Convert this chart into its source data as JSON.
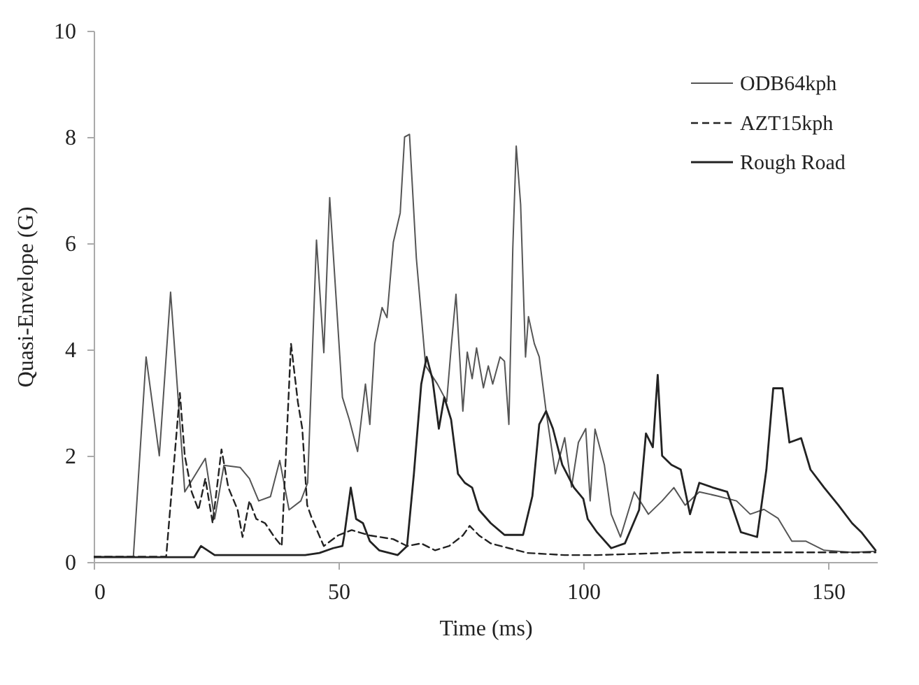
{
  "chart_data": {
    "type": "line",
    "xlabel": "Time (ms)",
    "ylabel": "Quasi-Envelope (G)",
    "xlim": [
      0,
      160
    ],
    "xticks": [
      0,
      50,
      100,
      150
    ],
    "ylim": [
      0,
      10
    ],
    "yticks": [
      0,
      2,
      4,
      6,
      8,
      10
    ],
    "grid": false,
    "legend": "top right",
    "marker": "none",
    "series": [
      {
        "name": "ODB64kph",
        "color": "#555555",
        "line_style": "solid",
        "x": [
          0,
          8.1,
          10.7,
          13.4,
          15.7,
          18.6,
          22.8,
          24.7,
          26.6,
          29.9,
          31.8,
          33.7,
          36.1,
          38.0,
          39.9,
          42.3,
          43.7,
          45.5,
          47.0,
          48.2,
          50.8,
          52.2,
          53.9,
          55.5,
          56.4,
          57.4,
          58.9,
          59.9,
          61.2,
          62.6,
          63.5,
          64.5,
          65.9,
          67.8,
          70.2,
          72.1,
          73.0,
          74.0,
          75.4,
          76.3,
          77.3,
          78.2,
          79.6,
          80.6,
          81.5,
          83.0,
          83.9,
          84.8,
          85.6,
          86.3,
          87.2,
          88.2,
          88.8,
          90.0,
          91.0,
          92.4,
          94.3,
          96.2,
          97.6,
          99.0,
          100.5,
          101.4,
          102.4,
          104.3,
          105.7,
          107.6,
          110.4,
          113.3,
          116.1,
          118.5,
          120.8,
          123.7,
          127.5,
          131.3,
          134.1,
          136.9,
          139.8,
          142.6,
          145.5,
          149.2,
          154.9,
          159.7
        ],
        "values": [
          0.1,
          0.1,
          3.86,
          2.0,
          5.08,
          1.32,
          1.95,
          0.81,
          1.82,
          1.78,
          1.57,
          1.15,
          1.23,
          1.91,
          0.98,
          1.15,
          1.49,
          6.06,
          3.94,
          6.86,
          3.1,
          2.68,
          2.08,
          3.35,
          2.59,
          4.11,
          4.79,
          4.6,
          6.02,
          6.57,
          8.0,
          8.05,
          5.72,
          3.69,
          3.35,
          3.02,
          4.03,
          5.04,
          2.84,
          3.95,
          3.45,
          4.03,
          3.28,
          3.69,
          3.35,
          3.86,
          3.78,
          2.59,
          5.9,
          7.83,
          6.73,
          3.86,
          4.62,
          4.11,
          3.86,
          2.84,
          1.66,
          2.34,
          1.41,
          2.25,
          2.51,
          1.15,
          2.5,
          1.83,
          0.9,
          0.47,
          1.32,
          0.9,
          1.15,
          1.4,
          1.07,
          1.32,
          1.24,
          1.15,
          0.9,
          0.99,
          0.82,
          0.39,
          0.39,
          0.22,
          0.18,
          0.2
        ]
      },
      {
        "name": "AZT15kph",
        "color": "#222222",
        "line_style": "dashed",
        "x": [
          0,
          14.8,
          17.6,
          18.6,
          20.0,
          21.4,
          22.8,
          24.3,
          26.1,
          27.5,
          29.4,
          30.4,
          31.8,
          33.2,
          35.0,
          36.9,
          38.4,
          40.3,
          41.7,
          42.6,
          43.6,
          44.6,
          47.0,
          49.9,
          52.7,
          56.4,
          61.2,
          64.0,
          66.9,
          69.7,
          72.6,
          75.4,
          76.8,
          78.7,
          81.1,
          84.8,
          88.6,
          96.2,
          102.8,
          120,
          140,
          159.7
        ],
        "values": [
          0.1,
          0.1,
          3.18,
          2.0,
          1.32,
          0.98,
          1.57,
          0.73,
          2.12,
          1.4,
          0.98,
          0.47,
          1.15,
          0.81,
          0.73,
          0.47,
          0.3,
          4.11,
          3.01,
          2.51,
          1.07,
          0.81,
          0.3,
          0.5,
          0.6,
          0.5,
          0.43,
          0.3,
          0.35,
          0.22,
          0.3,
          0.5,
          0.68,
          0.5,
          0.35,
          0.26,
          0.17,
          0.13,
          0.13,
          0.18,
          0.18,
          0.18
        ]
      },
      {
        "name": "Rough Road",
        "color": "#222222",
        "line_style": "solid",
        "x": [
          0,
          20.5,
          21.9,
          24.7,
          43.2,
          46.1,
          48.9,
          50.8,
          51.2,
          52.5,
          53.6,
          55.0,
          56.4,
          58.3,
          62.1,
          64.0,
          65.4,
          66.9,
          68.0,
          69.2,
          70.5,
          71.6,
          73.0,
          74.4,
          75.8,
          77.3,
          78.7,
          81.1,
          83.9,
          87.7,
          89.6,
          91.0,
          92.4,
          93.8,
          95.7,
          98.1,
          100.0,
          100.9,
          102.8,
          105.7,
          108.5,
          111.4,
          112.8,
          114.2,
          115.2,
          116.1,
          118.0,
          119.9,
          121.8,
          123.7,
          126.5,
          129.4,
          132.2,
          135.5,
          137.4,
          138.8,
          140.7,
          142.1,
          144.5,
          146.4,
          149.2,
          152.1,
          154.9,
          156.8,
          159.7
        ],
        "values": [
          0.09,
          0.09,
          0.3,
          0.13,
          0.13,
          0.17,
          0.26,
          0.3,
          0.51,
          1.4,
          0.81,
          0.73,
          0.39,
          0.22,
          0.13,
          0.3,
          1.66,
          3.35,
          3.86,
          3.44,
          2.51,
          3.1,
          2.68,
          1.66,
          1.49,
          1.4,
          0.98,
          0.73,
          0.51,
          0.51,
          1.24,
          2.59,
          2.84,
          2.51,
          1.83,
          1.4,
          1.19,
          0.81,
          0.56,
          0.26,
          0.35,
          0.98,
          2.42,
          2.16,
          3.52,
          2.0,
          1.83,
          1.74,
          0.9,
          1.49,
          1.4,
          1.32,
          0.56,
          0.47,
          1.74,
          3.27,
          3.27,
          2.25,
          2.33,
          1.74,
          1.4,
          1.07,
          0.73,
          0.56,
          0.22
        ]
      }
    ]
  }
}
